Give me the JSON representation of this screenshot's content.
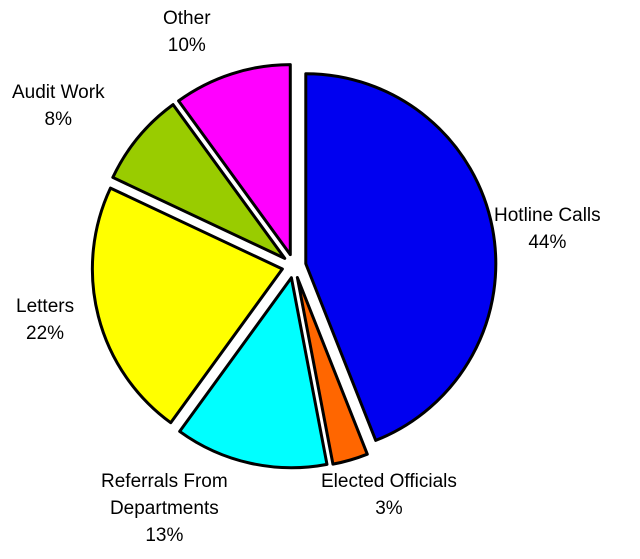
{
  "chart_data": {
    "type": "pie",
    "title": "",
    "exploded": true,
    "slices": [
      {
        "label": "Hotline Calls",
        "value": 44,
        "percent_label": "44%",
        "color": "#0000f0"
      },
      {
        "label": "Elected Officials",
        "value": 3,
        "percent_label": "3%",
        "color": "#ff6600"
      },
      {
        "label": "Referrals From Departments",
        "value": 13,
        "percent_label": "13%",
        "color": "#00ffff"
      },
      {
        "label": "Letters",
        "value": 22,
        "percent_label": "22%",
        "color": "#ffff00"
      },
      {
        "label": "Audit Work",
        "value": 8,
        "percent_label": "8%",
        "color": "#99cc00"
      },
      {
        "label": "Other",
        "value": 10,
        "percent_label": "10%",
        "color": "#ff00ff"
      }
    ]
  },
  "labels": {
    "hotline": {
      "line1": "Hotline Calls",
      "line2": "44%"
    },
    "elected": {
      "line1": "Elected Officials",
      "line2": "3%"
    },
    "referrals": {
      "line1": "Referrals From",
      "line2": "Departments",
      "line3": "13%"
    },
    "letters": {
      "line1": "Letters",
      "line2": "22%"
    },
    "audit": {
      "line1": "Audit Work",
      "line2": "8%"
    },
    "other": {
      "line1": "Other",
      "line2": "10%"
    }
  }
}
